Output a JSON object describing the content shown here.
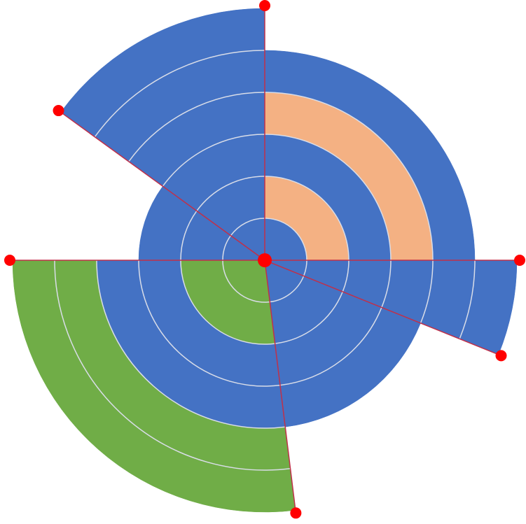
{
  "chart_data": {
    "type": "polar",
    "grid": true,
    "sectors": [
      {
        "start": 0,
        "end": 90,
        "segments": [
          {
            "value": 1,
            "color": "#4472c4"
          },
          {
            "value": 1,
            "color": "#f4b183"
          },
          {
            "value": 1,
            "color": "#4472c4"
          },
          {
            "value": 1,
            "color": "#f4b183"
          },
          {
            "value": 1,
            "color": "#4472c4"
          }
        ]
      },
      {
        "start": 90,
        "end": 112,
        "segments": [
          {
            "value": 6,
            "color": "#4472c4"
          }
        ]
      },
      {
        "start": 112,
        "end": 173,
        "segments": [
          {
            "value": 4,
            "color": "#4472c4"
          }
        ]
      },
      {
        "start": 173,
        "end": 270,
        "segments": [
          {
            "value": 2,
            "color": "#70ad47"
          },
          {
            "value": 2,
            "color": "#4472c4"
          },
          {
            "value": 2,
            "color": "#70ad47"
          }
        ]
      },
      {
        "start": 270,
        "end": 306,
        "segments": [
          {
            "value": 3,
            "color": "#4472c4"
          }
        ]
      },
      {
        "start": 306,
        "end": 360,
        "segments": [
          {
            "value": 6,
            "color": "#4472c4"
          }
        ]
      }
    ]
  }
}
